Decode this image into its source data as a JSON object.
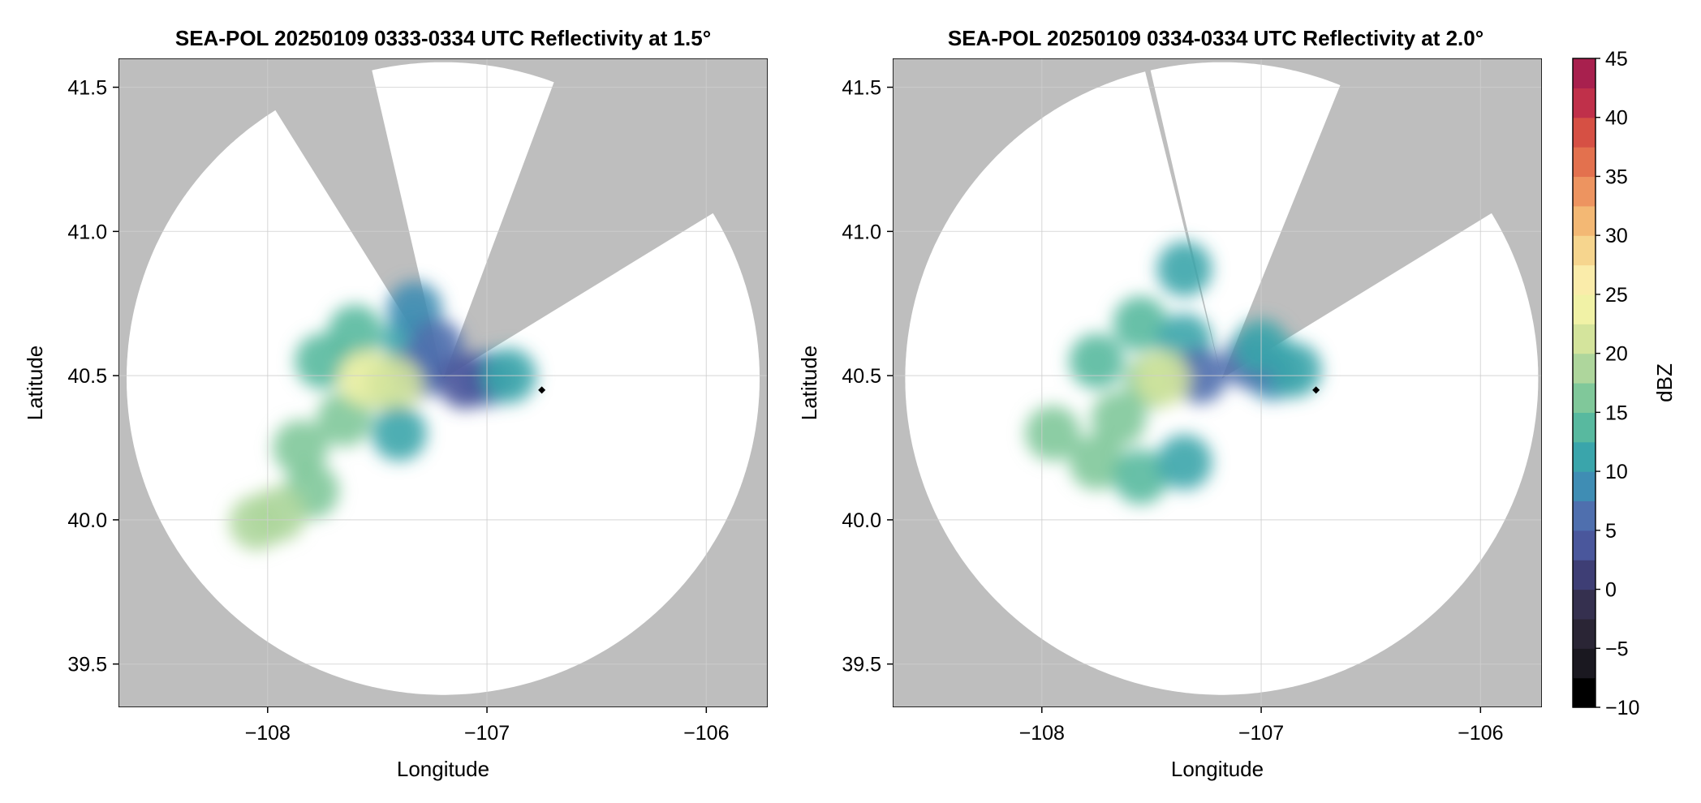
{
  "chart_data": [
    {
      "type": "heatmap",
      "title": "SEA-POL 20250109 0333-0334 UTC Reflectivity at 1.5°",
      "xlabel": "Longitude",
      "ylabel": "Latitude",
      "xlim": [
        -108.68,
        -105.72
      ],
      "ylim": [
        39.35,
        41.6
      ],
      "xticks": [
        -108,
        -107,
        -106
      ],
      "xtick_labels": [
        "−108",
        "−107",
        "−106"
      ],
      "yticks": [
        39.5,
        40.0,
        40.5,
        41.0,
        41.5
      ],
      "ytick_labels": [
        "39.5",
        "40.0",
        "40.5",
        "41.0",
        "41.5"
      ],
      "grid": true,
      "radar_site": [
        -107.2,
        40.49
      ],
      "marker_point": [
        -106.75,
        40.45
      ],
      "blocked_sectors_deg": [
        [
          20.5,
          58.5
        ],
        [
          328,
          347
        ]
      ],
      "echo_blobs": [
        {
          "lon": -107.5,
          "lat": 40.48,
          "value": 15
        },
        {
          "lon": -107.65,
          "lat": 40.35,
          "value": 16
        },
        {
          "lon": -107.75,
          "lat": 40.55,
          "value": 14
        },
        {
          "lon": -107.6,
          "lat": 40.65,
          "value": 13
        },
        {
          "lon": -107.35,
          "lat": 40.62,
          "value": 10
        },
        {
          "lon": -107.3,
          "lat": 40.52,
          "value": 6
        },
        {
          "lon": -107.55,
          "lat": 40.49,
          "value": 24
        },
        {
          "lon": -107.42,
          "lat": 40.47,
          "value": 22
        },
        {
          "lon": -107.85,
          "lat": 40.25,
          "value": 15
        },
        {
          "lon": -107.8,
          "lat": 40.1,
          "value": 17
        },
        {
          "lon": -107.95,
          "lat": 40.02,
          "value": 18
        },
        {
          "lon": -108.05,
          "lat": 39.99,
          "value": 18
        },
        {
          "lon": -107.4,
          "lat": 40.3,
          "value": 11
        },
        {
          "lon": -107.33,
          "lat": 40.73,
          "value": 9
        },
        {
          "lon": -107.23,
          "lat": 40.6,
          "value": 5
        },
        {
          "lon": -107.0,
          "lat": 40.49,
          "value": 7
        },
        {
          "lon": -107.1,
          "lat": 40.48,
          "value": 3
        },
        {
          "lon": -106.9,
          "lat": 40.5,
          "value": 10
        }
      ]
    },
    {
      "type": "heatmap",
      "title": "SEA-POL 20250109 0334-0334 UTC Reflectivity at 2.0°",
      "xlabel": "Longitude",
      "ylabel": "Latitude",
      "xlim": [
        -108.68,
        -105.72
      ],
      "ylim": [
        39.35,
        41.6
      ],
      "xticks": [
        -108,
        -107,
        -106
      ],
      "xtick_labels": [
        "−108",
        "−107",
        "−106"
      ],
      "yticks": [
        39.5,
        40.0,
        40.5,
        41.0,
        41.5
      ],
      "ytick_labels": [
        "39.5",
        "40.0",
        "40.5",
        "41.0",
        "41.5"
      ],
      "grid": true,
      "radar_site": [
        -107.18,
        40.49
      ],
      "marker_point": [
        -106.75,
        40.45
      ],
      "blocked_sectors_deg": [
        [
          22,
          58.5
        ],
        [
          346,
          347
        ]
      ],
      "echo_blobs": [
        {
          "lon": -107.5,
          "lat": 40.48,
          "value": 15
        },
        {
          "lon": -107.65,
          "lat": 40.35,
          "value": 16
        },
        {
          "lon": -107.75,
          "lat": 40.55,
          "value": 14
        },
        {
          "lon": -107.55,
          "lat": 40.68,
          "value": 13
        },
        {
          "lon": -107.35,
          "lat": 40.62,
          "value": 10
        },
        {
          "lon": -107.28,
          "lat": 40.5,
          "value": 6
        },
        {
          "lon": -107.45,
          "lat": 40.49,
          "value": 21
        },
        {
          "lon": -107.35,
          "lat": 40.87,
          "value": 12
        },
        {
          "lon": -107.75,
          "lat": 40.2,
          "value": 15
        },
        {
          "lon": -107.55,
          "lat": 40.15,
          "value": 14
        },
        {
          "lon": -107.35,
          "lat": 40.2,
          "value": 11
        },
        {
          "lon": -107.95,
          "lat": 40.3,
          "value": 15
        },
        {
          "lon": -106.95,
          "lat": 40.51,
          "value": 9
        },
        {
          "lon": -106.85,
          "lat": 40.52,
          "value": 12
        },
        {
          "lon": -107.05,
          "lat": 40.55,
          "value": 7
        },
        {
          "lon": -107.0,
          "lat": 40.6,
          "value": 11
        }
      ]
    }
  ],
  "colorbar": {
    "label": "dBZ",
    "min": -10,
    "max": 45,
    "step": 2.5,
    "ticks": [
      45,
      40,
      35,
      30,
      25,
      20,
      15,
      10,
      5,
      0,
      -5,
      -10
    ],
    "tick_labels": [
      "45",
      "40",
      "35",
      "30",
      "25",
      "20",
      "15",
      "10",
      "5",
      "0",
      "−5",
      "−10"
    ],
    "colors": [
      "#000000",
      "#1a1820",
      "#2a2535",
      "#35304f",
      "#3e3e75",
      "#4a579c",
      "#4f6fae",
      "#3f8db4",
      "#3aa5ab",
      "#58b99f",
      "#80c89a",
      "#aed69c",
      "#d4e49c",
      "#f1f2a6",
      "#faecaa",
      "#f6d58e",
      "#f3b874",
      "#ed9460",
      "#e3714e",
      "#d65044",
      "#c0304a",
      "#a8204e",
      "#c83579",
      "#dc5b99",
      "#e988b7",
      "#e8aacb",
      "#caa0cb",
      "#a476b0",
      "#7e4f96",
      "#5b2878",
      "#3a0a55"
    ]
  },
  "colors": {
    "blocked_gray": "#bebebe",
    "coverage_white": "#ffffff",
    "grid": "#cfcfcf"
  }
}
